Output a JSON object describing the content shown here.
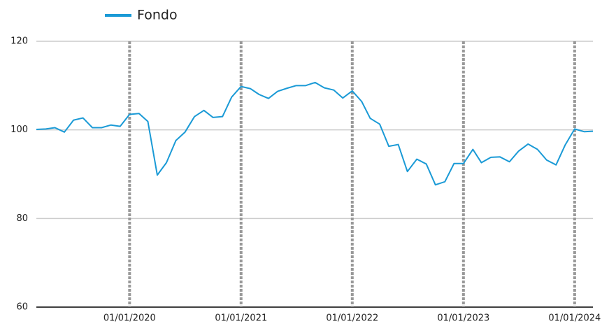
{
  "chart_data": {
    "type": "line",
    "x": [
      "2019-03-01",
      "2019-04-01",
      "2019-05-01",
      "2019-06-01",
      "2019-07-01",
      "2019-08-01",
      "2019-09-01",
      "2019-10-01",
      "2019-11-01",
      "2019-12-01",
      "2020-01-01",
      "2020-02-01",
      "2020-03-01",
      "2020-04-01",
      "2020-05-01",
      "2020-06-01",
      "2020-07-01",
      "2020-08-01",
      "2020-09-01",
      "2020-10-01",
      "2020-11-01",
      "2020-12-01",
      "2021-01-01",
      "2021-02-01",
      "2021-03-01",
      "2021-04-01",
      "2021-05-01",
      "2021-06-01",
      "2021-07-01",
      "2021-08-01",
      "2021-09-01",
      "2021-10-01",
      "2021-11-01",
      "2021-12-01",
      "2022-01-01",
      "2022-02-01",
      "2022-03-01",
      "2022-04-01",
      "2022-05-01",
      "2022-06-01",
      "2022-07-01",
      "2022-08-01",
      "2022-09-01",
      "2022-10-01",
      "2022-11-01",
      "2022-12-01",
      "2023-01-01",
      "2023-02-01",
      "2023-03-01",
      "2023-04-01",
      "2023-05-01",
      "2023-06-01",
      "2023-07-01",
      "2023-08-01",
      "2023-09-01",
      "2023-10-01",
      "2023-11-01",
      "2023-12-01",
      "2024-01-01",
      "2024-02-01",
      "2024-03-01"
    ],
    "series": [
      {
        "name": "Fondo",
        "color": "#1a9ad6",
        "values": [
          100.1,
          100.2,
          100.5,
          99.5,
          102.2,
          102.7,
          100.5,
          100.5,
          101.1,
          100.8,
          103.5,
          103.7,
          101.9,
          89.8,
          92.6,
          97.6,
          99.5,
          103.0,
          104.4,
          102.8,
          103.0,
          107.4,
          109.8,
          109.3,
          108.0,
          107.1,
          108.7,
          109.4,
          110.0,
          110.0,
          110.7,
          109.5,
          109.0,
          107.2,
          108.8,
          106.4,
          102.6,
          101.3,
          96.3,
          96.7,
          90.6,
          93.4,
          92.3,
          87.6,
          88.3,
          92.4,
          92.4,
          95.6,
          92.6,
          93.8,
          93.9,
          92.8,
          95.2,
          96.8,
          95.6,
          93.2,
          92.1,
          96.6,
          100.2,
          99.6,
          99.7
        ]
      }
    ],
    "xlim": [
      "2019-03-01",
      "2024-03-01"
    ],
    "xticks": [
      {
        "value": "2020-01-01",
        "label": "01/01/2020"
      },
      {
        "value": "2021-01-01",
        "label": "01/01/2021"
      },
      {
        "value": "2022-01-01",
        "label": "01/01/2022"
      },
      {
        "value": "2023-01-01",
        "label": "01/01/2023"
      },
      {
        "value": "2024-01-01",
        "label": "01/01/2024"
      }
    ],
    "ylim": [
      60,
      120
    ],
    "yticks": [
      60,
      80,
      100,
      120
    ],
    "grid": true,
    "legend": "top"
  }
}
